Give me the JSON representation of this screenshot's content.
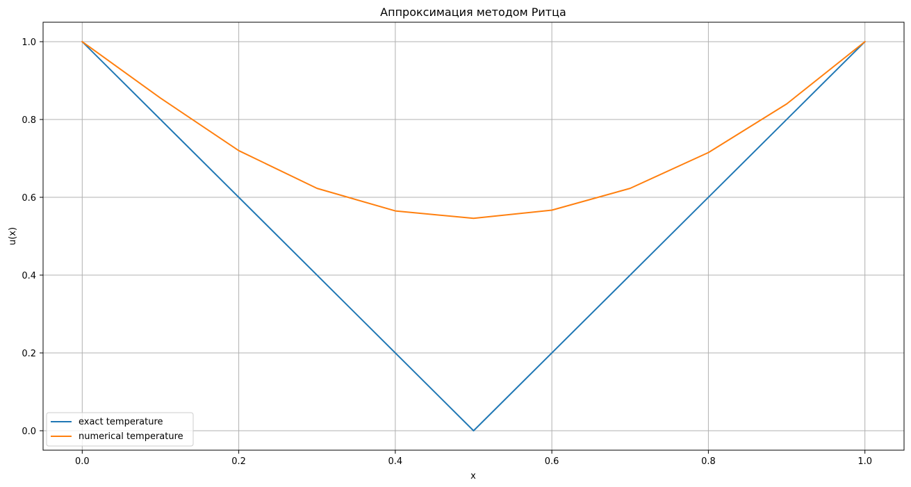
{
  "chart_data": {
    "type": "line",
    "title": "Аппроксимация методом Ритца",
    "xlabel": "x",
    "ylabel": "u(x)",
    "xlim": [
      -0.05,
      1.05
    ],
    "ylim": [
      -0.05,
      1.05
    ],
    "xticks": [
      0.0,
      0.2,
      0.4,
      0.6,
      0.8,
      1.0
    ],
    "yticks": [
      0.0,
      0.2,
      0.4,
      0.6,
      0.8,
      1.0
    ],
    "xtick_labels": [
      "0.0",
      "0.2",
      "0.4",
      "0.6",
      "0.8",
      "1.0"
    ],
    "ytick_labels": [
      "0.0",
      "0.2",
      "0.4",
      "0.6",
      "0.8",
      "1.0"
    ],
    "grid": true,
    "legend_position": "lower-left",
    "series": [
      {
        "name": "exact temperature",
        "color": "#1f77b4",
        "x": [
          0.0,
          0.5,
          1.0
        ],
        "y": [
          1.0,
          0.0,
          1.0
        ]
      },
      {
        "name": "numerical temperature",
        "color": "#ff7f0e",
        "x": [
          0.0,
          0.1,
          0.2,
          0.3,
          0.4,
          0.5,
          0.6,
          0.7,
          0.8,
          0.9,
          1.0
        ],
        "y": [
          1.0,
          0.855,
          0.72,
          0.623,
          0.565,
          0.546,
          0.567,
          0.623,
          0.715,
          0.84,
          1.0
        ]
      }
    ]
  }
}
